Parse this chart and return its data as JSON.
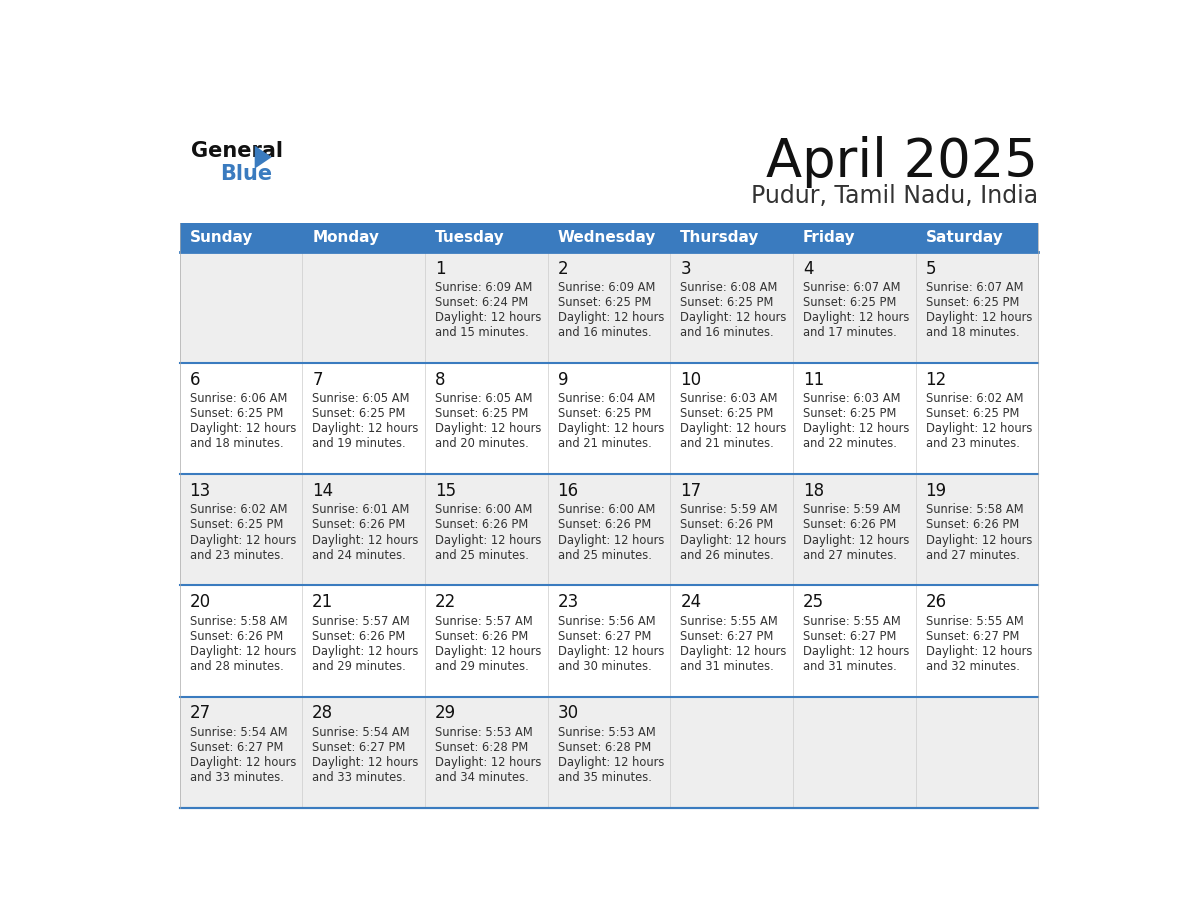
{
  "title": "April 2025",
  "subtitle": "Pudur, Tamil Nadu, India",
  "header_color": "#3a7bbf",
  "header_text_color": "#ffffff",
  "cell_bg_odd": "#eeeeee",
  "cell_bg_even": "#ffffff",
  "border_color": "#3a7bbf",
  "sep_color": "#3a7bbf",
  "text_color": "#222222",
  "days_of_week": [
    "Sunday",
    "Monday",
    "Tuesday",
    "Wednesday",
    "Thursday",
    "Friday",
    "Saturday"
  ],
  "weeks": [
    [
      {
        "day": "",
        "sunrise": "",
        "sunset": "",
        "daylight": ""
      },
      {
        "day": "",
        "sunrise": "",
        "sunset": "",
        "daylight": ""
      },
      {
        "day": "1",
        "sunrise": "Sunrise: 6:09 AM",
        "sunset": "Sunset: 6:24 PM",
        "daylight": "Daylight: 12 hours\nand 15 minutes."
      },
      {
        "day": "2",
        "sunrise": "Sunrise: 6:09 AM",
        "sunset": "Sunset: 6:25 PM",
        "daylight": "Daylight: 12 hours\nand 16 minutes."
      },
      {
        "day": "3",
        "sunrise": "Sunrise: 6:08 AM",
        "sunset": "Sunset: 6:25 PM",
        "daylight": "Daylight: 12 hours\nand 16 minutes."
      },
      {
        "day": "4",
        "sunrise": "Sunrise: 6:07 AM",
        "sunset": "Sunset: 6:25 PM",
        "daylight": "Daylight: 12 hours\nand 17 minutes."
      },
      {
        "day": "5",
        "sunrise": "Sunrise: 6:07 AM",
        "sunset": "Sunset: 6:25 PM",
        "daylight": "Daylight: 12 hours\nand 18 minutes."
      }
    ],
    [
      {
        "day": "6",
        "sunrise": "Sunrise: 6:06 AM",
        "sunset": "Sunset: 6:25 PM",
        "daylight": "Daylight: 12 hours\nand 18 minutes."
      },
      {
        "day": "7",
        "sunrise": "Sunrise: 6:05 AM",
        "sunset": "Sunset: 6:25 PM",
        "daylight": "Daylight: 12 hours\nand 19 minutes."
      },
      {
        "day": "8",
        "sunrise": "Sunrise: 6:05 AM",
        "sunset": "Sunset: 6:25 PM",
        "daylight": "Daylight: 12 hours\nand 20 minutes."
      },
      {
        "day": "9",
        "sunrise": "Sunrise: 6:04 AM",
        "sunset": "Sunset: 6:25 PM",
        "daylight": "Daylight: 12 hours\nand 21 minutes."
      },
      {
        "day": "10",
        "sunrise": "Sunrise: 6:03 AM",
        "sunset": "Sunset: 6:25 PM",
        "daylight": "Daylight: 12 hours\nand 21 minutes."
      },
      {
        "day": "11",
        "sunrise": "Sunrise: 6:03 AM",
        "sunset": "Sunset: 6:25 PM",
        "daylight": "Daylight: 12 hours\nand 22 minutes."
      },
      {
        "day": "12",
        "sunrise": "Sunrise: 6:02 AM",
        "sunset": "Sunset: 6:25 PM",
        "daylight": "Daylight: 12 hours\nand 23 minutes."
      }
    ],
    [
      {
        "day": "13",
        "sunrise": "Sunrise: 6:02 AM",
        "sunset": "Sunset: 6:25 PM",
        "daylight": "Daylight: 12 hours\nand 23 minutes."
      },
      {
        "day": "14",
        "sunrise": "Sunrise: 6:01 AM",
        "sunset": "Sunset: 6:26 PM",
        "daylight": "Daylight: 12 hours\nand 24 minutes."
      },
      {
        "day": "15",
        "sunrise": "Sunrise: 6:00 AM",
        "sunset": "Sunset: 6:26 PM",
        "daylight": "Daylight: 12 hours\nand 25 minutes."
      },
      {
        "day": "16",
        "sunrise": "Sunrise: 6:00 AM",
        "sunset": "Sunset: 6:26 PM",
        "daylight": "Daylight: 12 hours\nand 25 minutes."
      },
      {
        "day": "17",
        "sunrise": "Sunrise: 5:59 AM",
        "sunset": "Sunset: 6:26 PM",
        "daylight": "Daylight: 12 hours\nand 26 minutes."
      },
      {
        "day": "18",
        "sunrise": "Sunrise: 5:59 AM",
        "sunset": "Sunset: 6:26 PM",
        "daylight": "Daylight: 12 hours\nand 27 minutes."
      },
      {
        "day": "19",
        "sunrise": "Sunrise: 5:58 AM",
        "sunset": "Sunset: 6:26 PM",
        "daylight": "Daylight: 12 hours\nand 27 minutes."
      }
    ],
    [
      {
        "day": "20",
        "sunrise": "Sunrise: 5:58 AM",
        "sunset": "Sunset: 6:26 PM",
        "daylight": "Daylight: 12 hours\nand 28 minutes."
      },
      {
        "day": "21",
        "sunrise": "Sunrise: 5:57 AM",
        "sunset": "Sunset: 6:26 PM",
        "daylight": "Daylight: 12 hours\nand 29 minutes."
      },
      {
        "day": "22",
        "sunrise": "Sunrise: 5:57 AM",
        "sunset": "Sunset: 6:26 PM",
        "daylight": "Daylight: 12 hours\nand 29 minutes."
      },
      {
        "day": "23",
        "sunrise": "Sunrise: 5:56 AM",
        "sunset": "Sunset: 6:27 PM",
        "daylight": "Daylight: 12 hours\nand 30 minutes."
      },
      {
        "day": "24",
        "sunrise": "Sunrise: 5:55 AM",
        "sunset": "Sunset: 6:27 PM",
        "daylight": "Daylight: 12 hours\nand 31 minutes."
      },
      {
        "day": "25",
        "sunrise": "Sunrise: 5:55 AM",
        "sunset": "Sunset: 6:27 PM",
        "daylight": "Daylight: 12 hours\nand 31 minutes."
      },
      {
        "day": "26",
        "sunrise": "Sunrise: 5:55 AM",
        "sunset": "Sunset: 6:27 PM",
        "daylight": "Daylight: 12 hours\nand 32 minutes."
      }
    ],
    [
      {
        "day": "27",
        "sunrise": "Sunrise: 5:54 AM",
        "sunset": "Sunset: 6:27 PM",
        "daylight": "Daylight: 12 hours\nand 33 minutes."
      },
      {
        "day": "28",
        "sunrise": "Sunrise: 5:54 AM",
        "sunset": "Sunset: 6:27 PM",
        "daylight": "Daylight: 12 hours\nand 33 minutes."
      },
      {
        "day": "29",
        "sunrise": "Sunrise: 5:53 AM",
        "sunset": "Sunset: 6:28 PM",
        "daylight": "Daylight: 12 hours\nand 34 minutes."
      },
      {
        "day": "30",
        "sunrise": "Sunrise: 5:53 AM",
        "sunset": "Sunset: 6:28 PM",
        "daylight": "Daylight: 12 hours\nand 35 minutes."
      },
      {
        "day": "",
        "sunrise": "",
        "sunset": "",
        "daylight": ""
      },
      {
        "day": "",
        "sunrise": "",
        "sunset": "",
        "daylight": ""
      },
      {
        "day": "",
        "sunrise": "",
        "sunset": "",
        "daylight": ""
      }
    ]
  ]
}
